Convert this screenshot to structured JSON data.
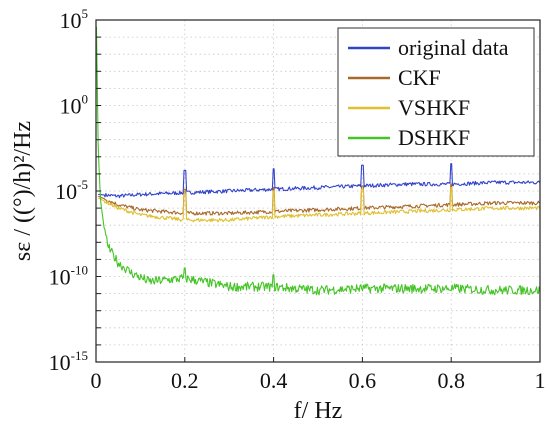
{
  "chart_data": {
    "type": "line",
    "xlabel": "f/ Hz",
    "ylabel": "sε / ((°)/h)²/Hz",
    "xlim": [
      0,
      1
    ],
    "ylim_log10": [
      -15,
      5
    ],
    "y_scale": "log",
    "grid": true,
    "grid_style": "dotted",
    "legend_placement": "top-right",
    "x_ticks": [
      "0",
      "0.2",
      "0.4",
      "0.6",
      "0.8",
      "1"
    ],
    "y_ticks": [
      {
        "base": "10",
        "exp": "5"
      },
      {
        "base": "10",
        "exp": "0"
      },
      {
        "base": "10",
        "exp": "-5"
      },
      {
        "base": "10",
        "exp": "-10"
      },
      {
        "base": "10",
        "exp": "-15"
      }
    ],
    "series": [
      {
        "name": "original data",
        "color": "#3344cc",
        "x": [
          0.005,
          0.05,
          0.1,
          0.2,
          0.3,
          0.4,
          0.5,
          0.6,
          0.7,
          0.8,
          0.9,
          1.0
        ],
        "y_log10": [
          -5.2,
          -5.3,
          -5.2,
          -5.1,
          -5.0,
          -4.9,
          -4.8,
          -4.7,
          -4.6,
          -4.6,
          -4.5,
          -4.5
        ],
        "spikes": [
          {
            "x": 0.2,
            "y_log10": -3.8
          },
          {
            "x": 0.4,
            "y_log10": -3.7
          },
          {
            "x": 0.6,
            "y_log10": -3.5
          },
          {
            "x": 0.8,
            "y_log10": -3.4
          }
        ]
      },
      {
        "name": "CKF",
        "color": "#a86a2c",
        "x": [
          0.005,
          0.05,
          0.1,
          0.2,
          0.3,
          0.4,
          0.5,
          0.6,
          0.7,
          0.8,
          0.9,
          1.0
        ],
        "y_log10": [
          -5.3,
          -5.8,
          -6.1,
          -6.3,
          -6.3,
          -6.2,
          -6.1,
          -6.0,
          -5.9,
          -5.8,
          -5.7,
          -5.7
        ],
        "spikes": [
          {
            "x": 0.2,
            "y_log10": -4.9
          },
          {
            "x": 0.4,
            "y_log10": -4.8
          },
          {
            "x": 0.6,
            "y_log10": -4.7
          },
          {
            "x": 0.8,
            "y_log10": -4.6
          }
        ]
      },
      {
        "name": "VSHKF",
        "color": "#e0c030",
        "x": [
          0.005,
          0.05,
          0.1,
          0.2,
          0.3,
          0.4,
          0.5,
          0.6,
          0.7,
          0.8,
          0.9,
          1.0
        ],
        "y_log10": [
          -5.4,
          -6.0,
          -6.4,
          -6.7,
          -6.7,
          -6.5,
          -6.4,
          -6.3,
          -6.2,
          -6.1,
          -6.0,
          -6.0
        ],
        "spikes": [
          {
            "x": 0.2,
            "y_log10": -5.2
          },
          {
            "x": 0.4,
            "y_log10": -5.0
          },
          {
            "x": 0.6,
            "y_log10": -4.9
          },
          {
            "x": 0.8,
            "y_log10": -4.8
          }
        ]
      },
      {
        "name": "DSHKF",
        "color": "#44c426",
        "x": [
          0.001,
          0.005,
          0.01,
          0.02,
          0.03,
          0.05,
          0.08,
          0.12,
          0.2,
          0.3,
          0.4,
          0.5,
          0.6,
          0.7,
          0.8,
          0.9,
          1.0
        ],
        "y_log10": [
          4.6,
          -2.5,
          -5.5,
          -7.5,
          -8.4,
          -9.2,
          -9.8,
          -10.3,
          -10.1,
          -10.6,
          -10.6,
          -10.8,
          -10.7,
          -10.7,
          -10.7,
          -10.8,
          -10.8
        ],
        "spikes": [
          {
            "x": 0.2,
            "y_log10": -9.5
          },
          {
            "x": 0.4,
            "y_log10": -9.9
          }
        ]
      }
    ]
  }
}
